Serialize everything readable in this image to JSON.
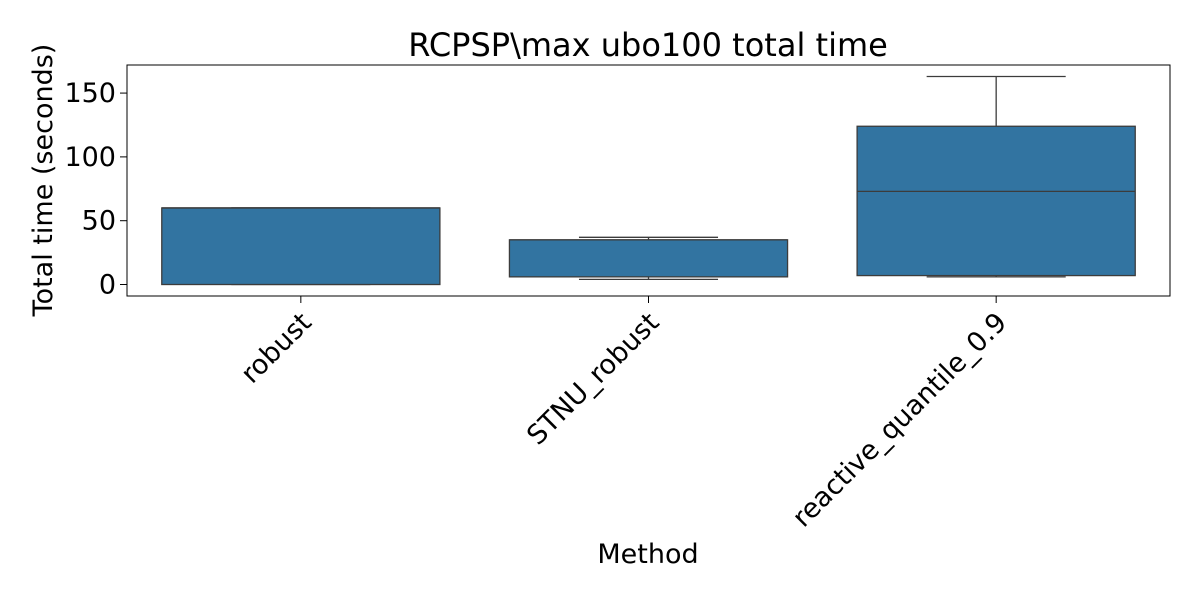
{
  "chart_data": {
    "type": "boxplot",
    "title": "RCPSP\\max ubo100 total time",
    "xlabel": "Method",
    "ylabel": "Total time (seconds)",
    "ylim": [
      -9,
      172
    ],
    "yticks": [
      0,
      50,
      100,
      150
    ],
    "categories": [
      "robust",
      "STNU_robust",
      "reactive_quantile_0.9"
    ],
    "boxes": [
      {
        "category": "robust",
        "whisker_low": 0,
        "q1": 0,
        "median": 60,
        "q3": 60,
        "whisker_high": 60
      },
      {
        "category": "STNU_robust",
        "whisker_low": 4,
        "q1": 6,
        "median": 35,
        "q3": 35,
        "whisker_high": 37
      },
      {
        "category": "reactive_quantile_0.9",
        "whisker_low": 6,
        "q1": 7,
        "median": 73,
        "q3": 124,
        "whisker_high": 163
      }
    ],
    "color": "#3274a1",
    "line_color": "#3c3c3c",
    "grid": false,
    "legend": "none"
  }
}
